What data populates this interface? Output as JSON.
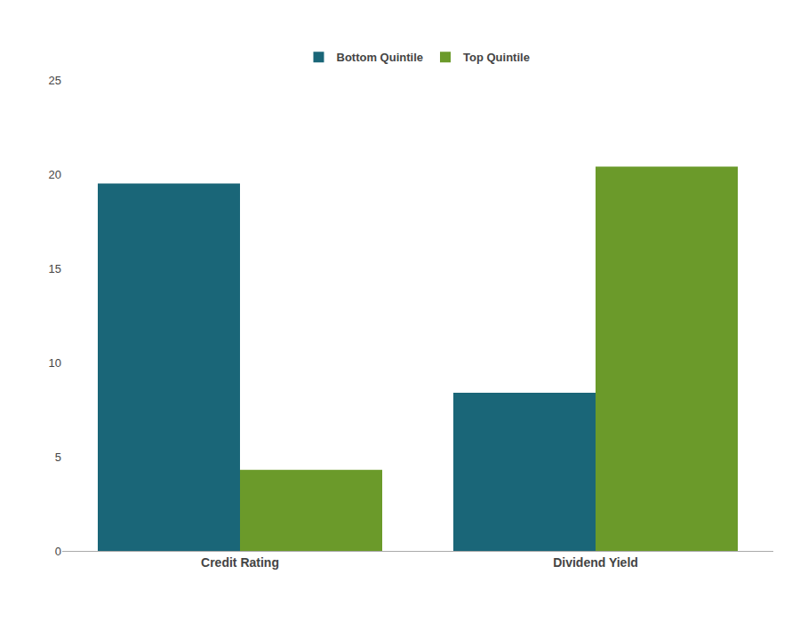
{
  "chart_data": {
    "type": "bar",
    "categories": [
      "Credit Rating",
      "Dividend Yield"
    ],
    "series": [
      {
        "name": "Bottom Quintile",
        "color": "#1a6678",
        "values": [
          19.5,
          8.4
        ]
      },
      {
        "name": "Top Quintile",
        "color": "#6b9a2a",
        "values": [
          4.3,
          20.4
        ]
      }
    ],
    "ylim": [
      0,
      25
    ],
    "yticks": [
      0,
      5,
      10,
      15,
      20,
      25
    ],
    "grid": false,
    "legend": "top"
  }
}
